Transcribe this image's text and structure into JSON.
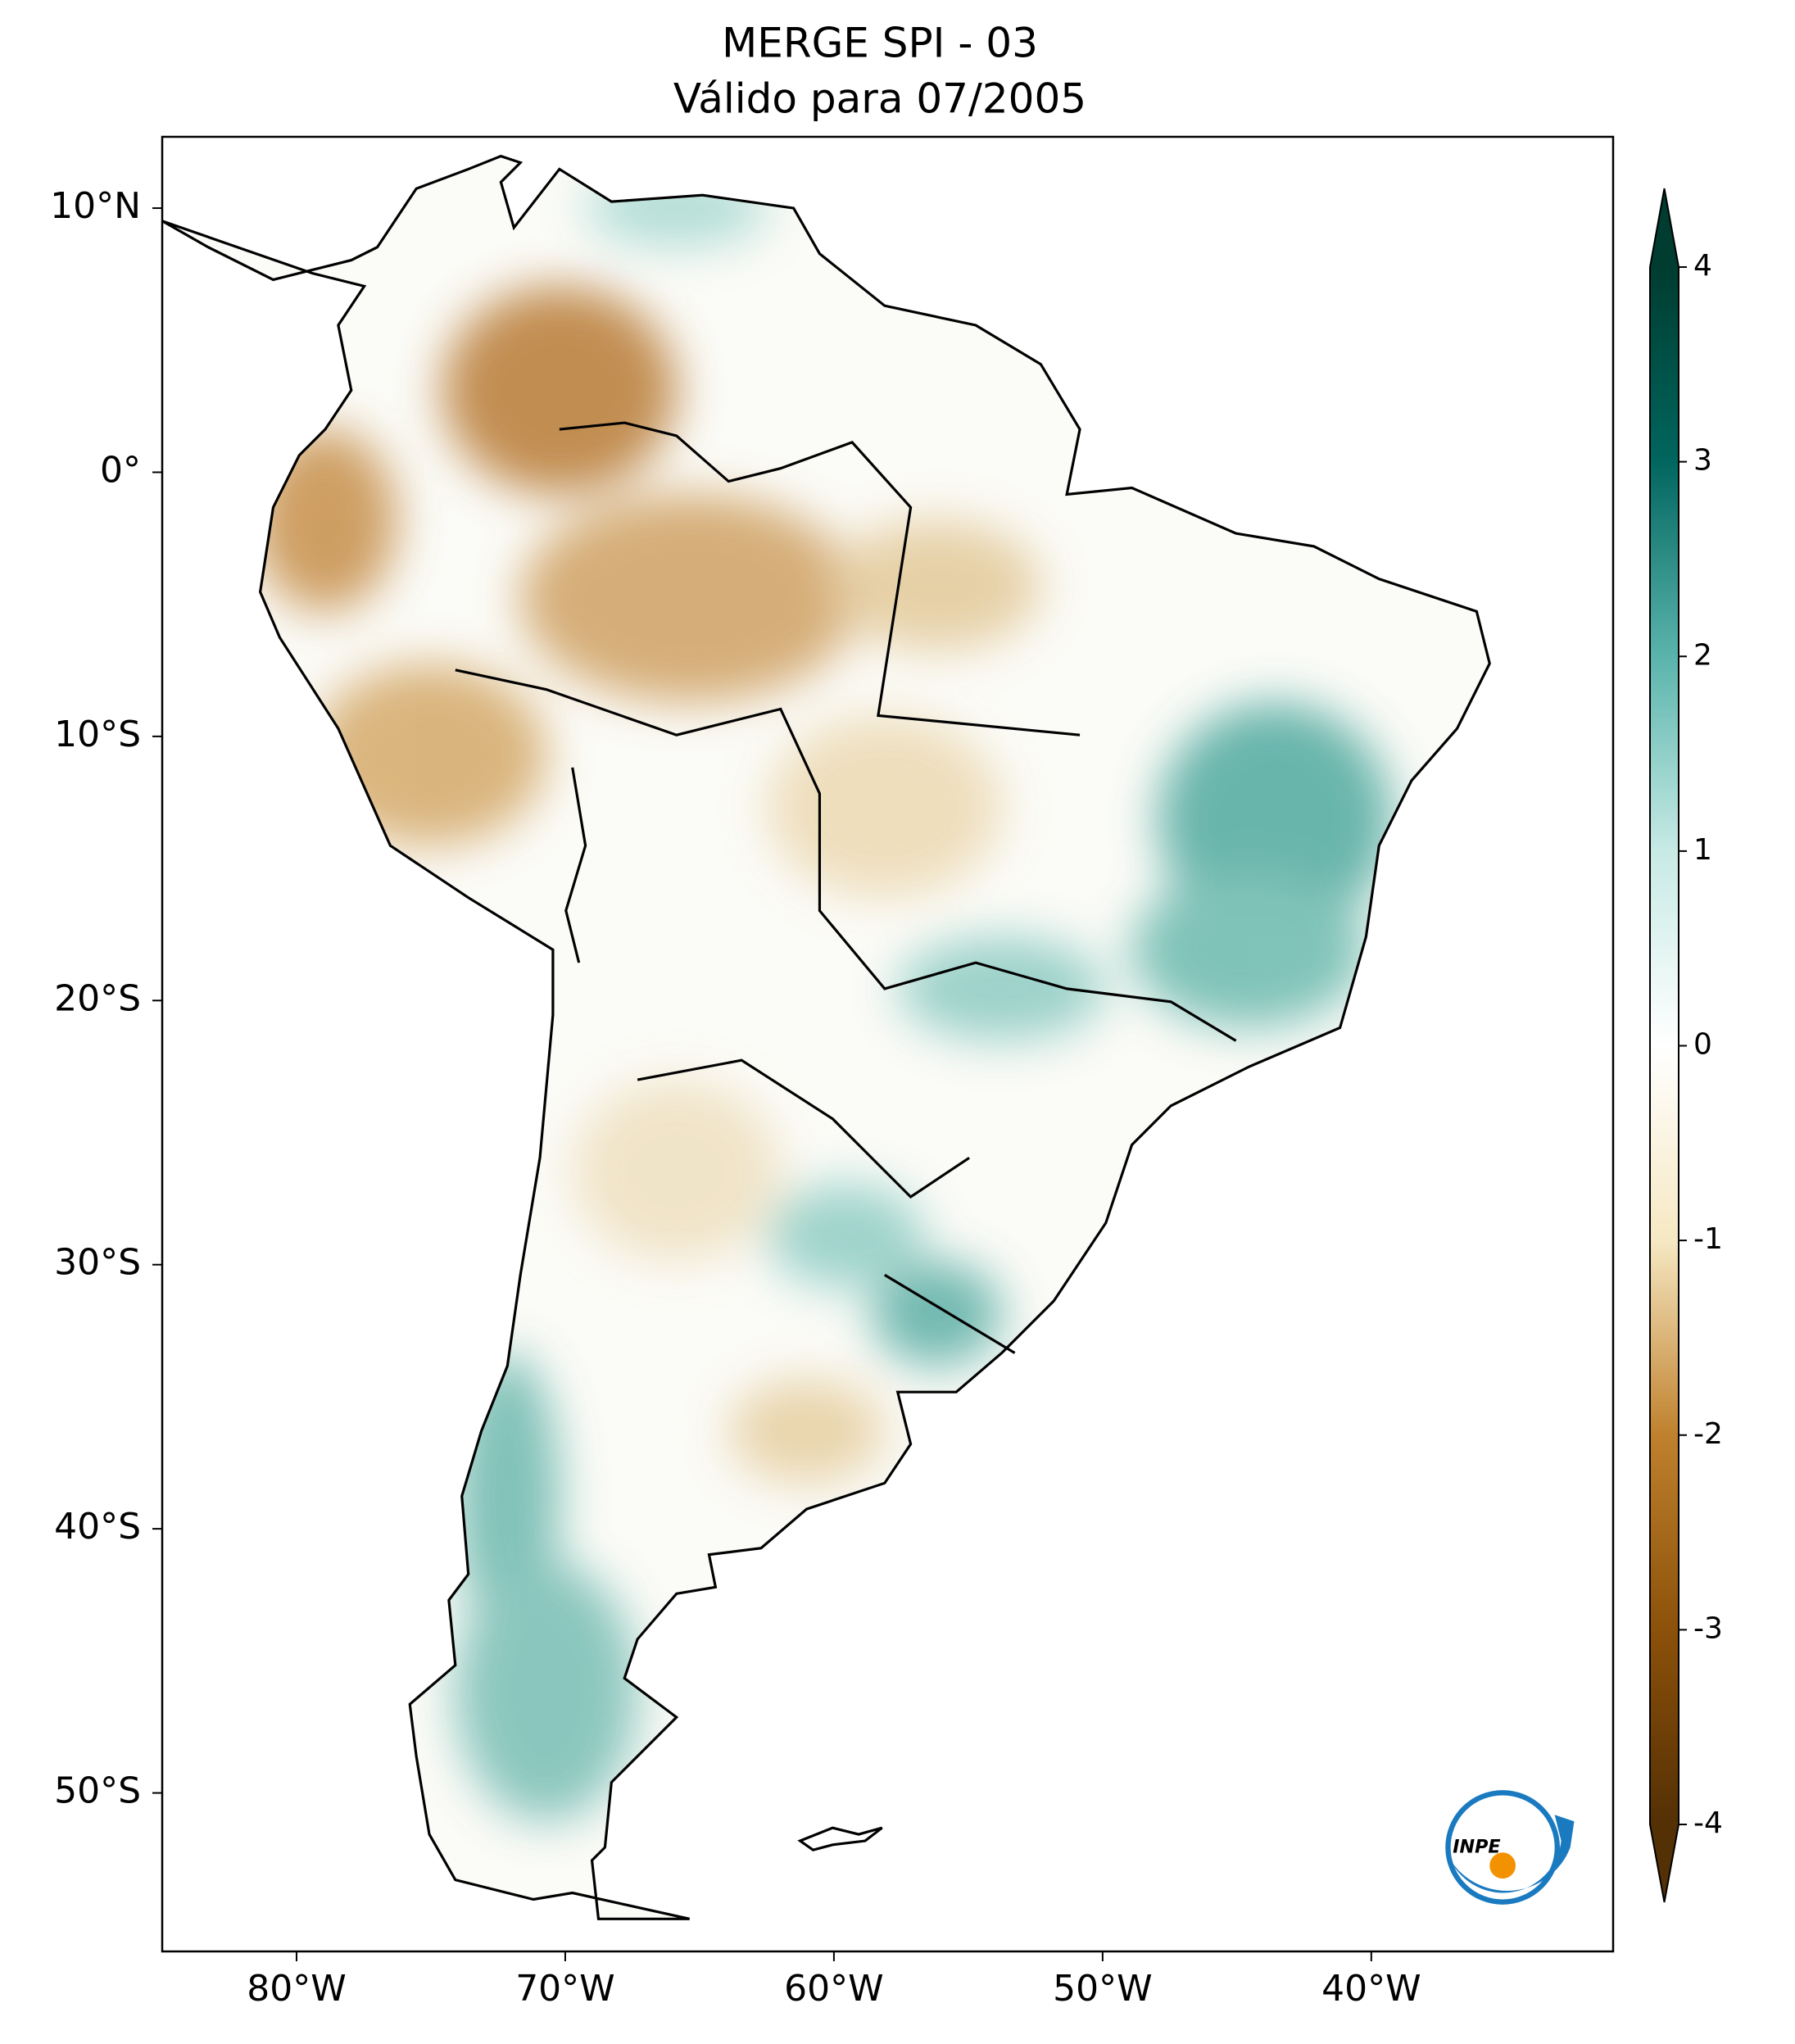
{
  "chart_data": {
    "type": "map",
    "title": [
      "MERGE   SPI - 03",
      "Válido para 07/2005"
    ],
    "xlim": [
      -85,
      -31
    ],
    "ylim": [
      -56,
      12.7
    ],
    "xticks": [
      {
        "value": -80,
        "label": "80°W"
      },
      {
        "value": -70,
        "label": "70°W"
      },
      {
        "value": -60,
        "label": "60°W"
      },
      {
        "value": -50,
        "label": "50°W"
      },
      {
        "value": -40,
        "label": "40°W"
      }
    ],
    "yticks": [
      {
        "value": 10,
        "label": "10°N"
      },
      {
        "value": 0,
        "label": "0°"
      },
      {
        "value": -10,
        "label": "10°S"
      },
      {
        "value": -20,
        "label": "20°S"
      },
      {
        "value": -30,
        "label": "30°S"
      },
      {
        "value": -40,
        "label": "40°S"
      },
      {
        "value": -50,
        "label": "50°S"
      }
    ],
    "colorbar": {
      "lim": [
        -4,
        4
      ],
      "ticks": [
        -4,
        -3,
        -2,
        -1,
        0,
        1,
        2,
        3,
        4
      ],
      "colors": [
        "#543005",
        "#8c510a",
        "#bf812d",
        "#f6e8c3",
        "#ffffff",
        "#c7eae5",
        "#5ab4ac",
        "#01665e",
        "#003c30"
      ]
    }
  },
  "logo_text": "INPE"
}
